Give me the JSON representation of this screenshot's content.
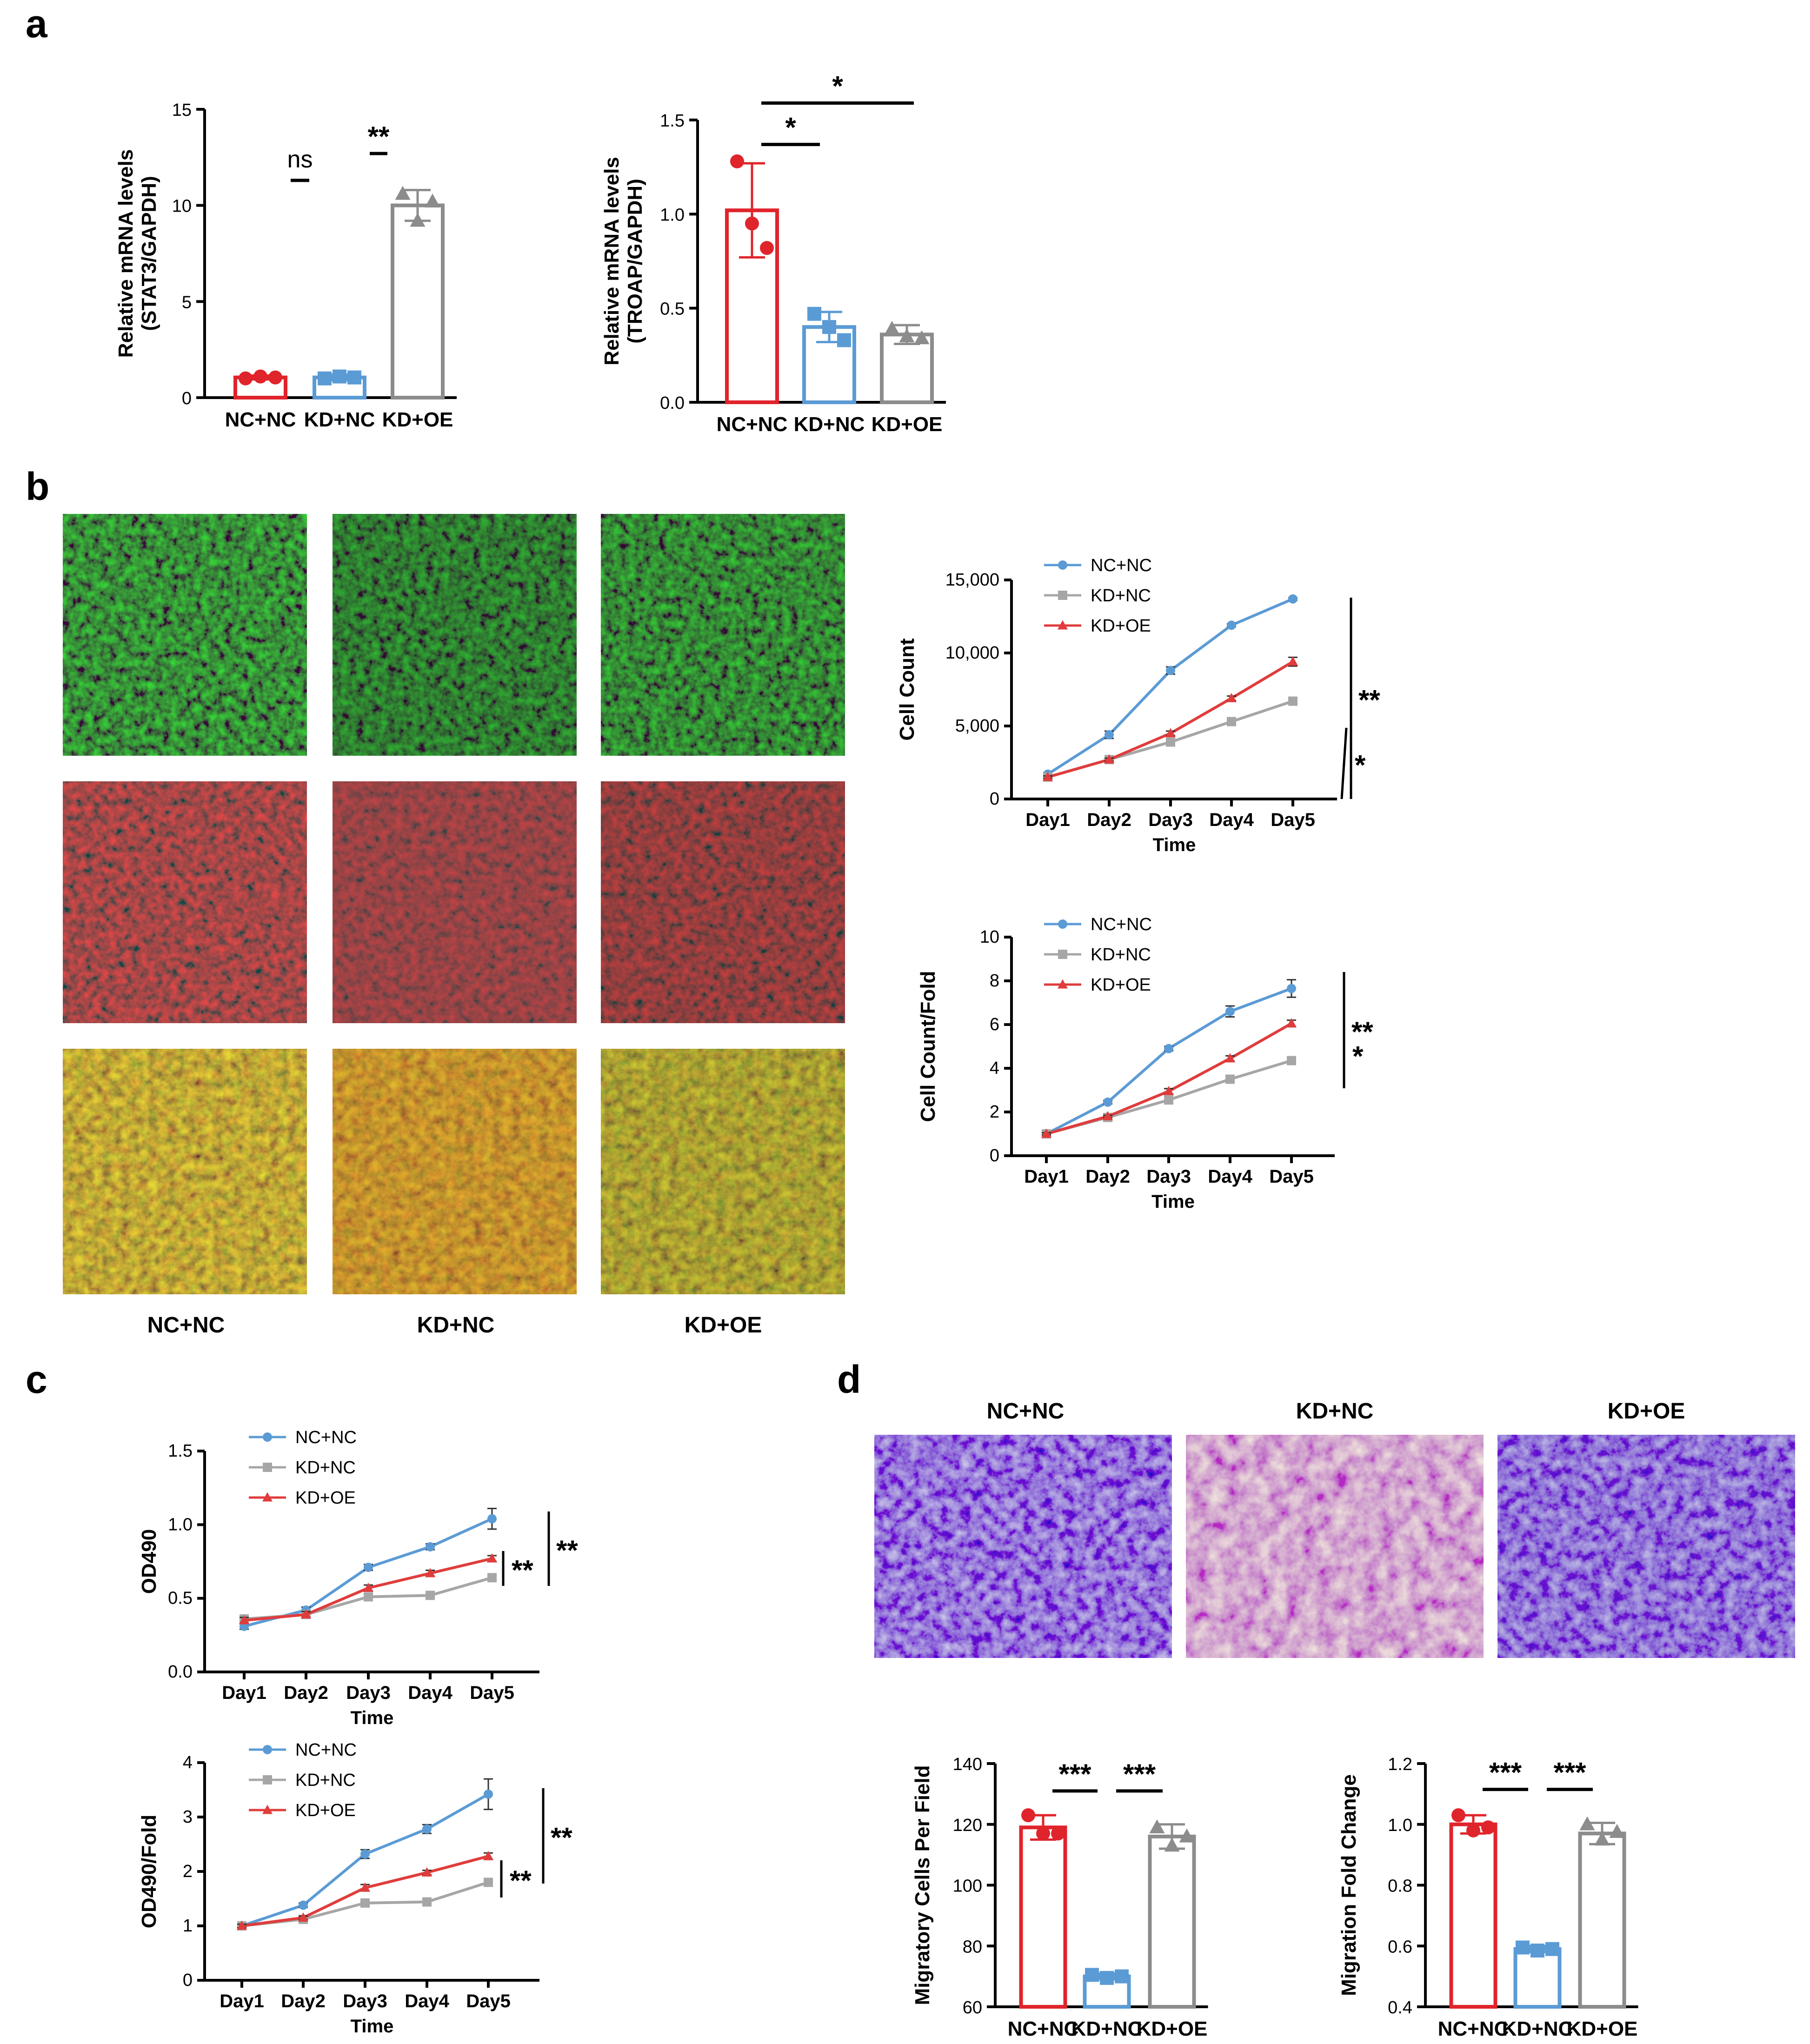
{
  "panels": [
    "a",
    "b",
    "c",
    "d"
  ],
  "colors": {
    "nc_nc_bar": "#e0242b",
    "kd_nc_bar": "#5b9bd5",
    "kd_oe_bar": "#8c8c8c",
    "nc_nc_line": "#5b9bd5",
    "kd_nc_line": "#a6a6a6",
    "kd_oe_line": "#e03c3c"
  },
  "microscopy_b": {
    "column_labels": [
      "NC+NC",
      "KD+NC",
      "KD+OE"
    ],
    "rows": [
      "green",
      "red",
      "merge"
    ]
  },
  "microscopy_d": {
    "column_labels": [
      "NC+NC",
      "KD+NC",
      "KD+OE"
    ]
  },
  "chart_data": [
    {
      "id": "a1",
      "type": "bar",
      "ylabel": "Relative mRNA levels\n(STAT3/GAPDH)",
      "ylabel_lines": [
        "Relative mRNA levels",
        "(STAT3/GAPDH)"
      ],
      "categories": [
        "NC+NC",
        "KD+NC",
        "KD+OE"
      ],
      "values": [
        1.05,
        1.05,
        10.0
      ],
      "errors": [
        0.1,
        0.15,
        0.8
      ],
      "points": [
        [
          1.0,
          1.1,
          1.05
        ],
        [
          1.0,
          1.1,
          1.05
        ],
        [
          10.6,
          9.2,
          10.2
        ]
      ],
      "markers": [
        "circle",
        "square",
        "triangle"
      ],
      "ylim": [
        0,
        15
      ],
      "yticks": [
        0,
        5,
        10,
        15
      ],
      "ytick_labels": [
        "0",
        "5",
        "10",
        "15"
      ],
      "significance": [
        {
          "pair": [
            0,
            1
          ],
          "label": "ns",
          "level": 11.3
        },
        {
          "pair": [
            1,
            2
          ],
          "label": "**",
          "level": 12.7
        }
      ]
    },
    {
      "id": "a2",
      "type": "bar",
      "ylabel_lines": [
        "Relative mRNA levels",
        "(TROAP/GAPDH)"
      ],
      "categories": [
        "NC+NC",
        "KD+NC",
        "KD+OE"
      ],
      "values": [
        1.02,
        0.4,
        0.36
      ],
      "errors": [
        0.25,
        0.08,
        0.05
      ],
      "points": [
        [
          1.28,
          0.95,
          0.82
        ],
        [
          0.47,
          0.4,
          0.33
        ],
        [
          0.39,
          0.35,
          0.34
        ]
      ],
      "markers": [
        "circle",
        "square",
        "triangle"
      ],
      "ylim": [
        0,
        1.5
      ],
      "yticks": [
        0,
        0.5,
        1.0,
        1.5
      ],
      "ytick_labels": [
        "0.0",
        "0.5",
        "1.0",
        "1.5"
      ],
      "significance": [
        {
          "pair": [
            0,
            1
          ],
          "label": "*",
          "level": 1.37
        },
        {
          "pair": [
            0,
            2
          ],
          "label": "*",
          "level": 1.59
        }
      ]
    },
    {
      "id": "b1",
      "type": "line",
      "ylabel": "Cell Count",
      "xlabel": "Time",
      "categories": [
        "Day1",
        "Day2",
        "Day3",
        "Day4",
        "Day5"
      ],
      "series": [
        {
          "name": "NC+NC",
          "values": [
            1700,
            4400,
            8800,
            11900,
            13700
          ],
          "errors": [
            100,
            250,
            250,
            100,
            80
          ],
          "marker": "circle"
        },
        {
          "name": "KD+NC",
          "values": [
            1500,
            2700,
            3900,
            5300,
            6700
          ],
          "errors": [
            80,
            100,
            120,
            100,
            250
          ],
          "marker": "square"
        },
        {
          "name": "KD+OE",
          "values": [
            1500,
            2700,
            4500,
            6900,
            9400
          ],
          "errors": [
            80,
            100,
            150,
            150,
            300
          ],
          "marker": "triangle"
        }
      ],
      "ylim": [
        0,
        15000
      ],
      "yticks": [
        0,
        5000,
        10000,
        15000
      ],
      "ytick_labels": [
        "0",
        "5,000",
        "10,000",
        "15,000"
      ],
      "significance": [
        "*",
        "**"
      ]
    },
    {
      "id": "b2",
      "type": "line",
      "ylabel": "Cell Count/Fold",
      "xlabel": "Time",
      "categories": [
        "Day1",
        "Day2",
        "Day3",
        "Day4",
        "Day5"
      ],
      "series": [
        {
          "name": "NC+NC",
          "values": [
            1.0,
            2.45,
            4.9,
            6.6,
            7.65
          ],
          "errors": [
            0.05,
            0.08,
            0.1,
            0.25,
            0.4
          ],
          "marker": "circle"
        },
        {
          "name": "KD+NC",
          "values": [
            1.0,
            1.75,
            2.55,
            3.5,
            4.35
          ],
          "errors": [
            0.05,
            0.05,
            0.1,
            0.08,
            0.12
          ],
          "marker": "square"
        },
        {
          "name": "KD+OE",
          "values": [
            1.0,
            1.8,
            2.95,
            4.45,
            6.05
          ],
          "errors": [
            0.05,
            0.05,
            0.12,
            0.12,
            0.15
          ],
          "marker": "triangle"
        }
      ],
      "ylim": [
        0,
        10
      ],
      "yticks": [
        0,
        2,
        4,
        6,
        8,
        10
      ],
      "ytick_labels": [
        "0",
        "2",
        "4",
        "6",
        "8",
        "10"
      ],
      "significance": [
        "*",
        "**"
      ]
    },
    {
      "id": "c1",
      "type": "line",
      "ylabel": "OD490",
      "xlabel": "Time",
      "categories": [
        "Day1",
        "Day2",
        "Day3",
        "Day4",
        "Day5"
      ],
      "series": [
        {
          "name": "NC+NC",
          "values": [
            0.31,
            0.42,
            0.71,
            0.85,
            1.04
          ],
          "errors": [
            0.02,
            0.02,
            0.02,
            0.02,
            0.07
          ],
          "marker": "circle"
        },
        {
          "name": "KD+NC",
          "values": [
            0.36,
            0.39,
            0.51,
            0.52,
            0.64
          ],
          "errors": [
            0.02,
            0.02,
            0.02,
            0.02,
            0.02
          ],
          "marker": "square"
        },
        {
          "name": "KD+OE",
          "values": [
            0.35,
            0.39,
            0.57,
            0.67,
            0.77
          ],
          "errors": [
            0.02,
            0.02,
            0.02,
            0.02,
            0.02
          ],
          "marker": "triangle"
        }
      ],
      "ylim": [
        0,
        1.5
      ],
      "yticks": [
        0,
        0.5,
        1.0,
        1.5
      ],
      "ytick_labels": [
        "0.0",
        "0.5",
        "1.0",
        "1.5"
      ],
      "significance": [
        "**",
        "**"
      ]
    },
    {
      "id": "c2",
      "type": "line",
      "ylabel": "OD490/Fold",
      "xlabel": "Time",
      "categories": [
        "Day1",
        "Day2",
        "Day3",
        "Day4",
        "Day5"
      ],
      "series": [
        {
          "name": "NC+NC",
          "values": [
            1.0,
            1.38,
            2.32,
            2.78,
            3.42
          ],
          "errors": [
            0.03,
            0.04,
            0.08,
            0.08,
            0.28
          ],
          "marker": "circle"
        },
        {
          "name": "KD+NC",
          "values": [
            1.0,
            1.12,
            1.42,
            1.44,
            1.8
          ],
          "errors": [
            0.03,
            0.03,
            0.03,
            0.03,
            0.04
          ],
          "marker": "square"
        },
        {
          "name": "KD+OE",
          "values": [
            1.0,
            1.15,
            1.7,
            1.98,
            2.28
          ],
          "errors": [
            0.03,
            0.03,
            0.06,
            0.04,
            0.06
          ],
          "marker": "triangle"
        }
      ],
      "ylim": [
        0,
        4
      ],
      "yticks": [
        0,
        1,
        2,
        3,
        4
      ],
      "ytick_labels": [
        "0",
        "1",
        "2",
        "3",
        "4"
      ],
      "significance": [
        "**",
        "**"
      ]
    },
    {
      "id": "d1",
      "type": "bar",
      "ylabel": "Migratory Cells Per Field",
      "categories": [
        "NC+NC",
        "KD+NC",
        "KD+OE"
      ],
      "values": [
        119,
        70,
        116
      ],
      "errors": [
        4,
        1,
        4
      ],
      "points": [
        [
          123,
          117,
          117
        ],
        [
          70.5,
          69.5,
          70
        ],
        [
          119,
          113,
          116
        ]
      ],
      "markers": [
        "circle",
        "square",
        "triangle"
      ],
      "ylim": [
        60,
        140
      ],
      "yticks": [
        60,
        80,
        100,
        120,
        140
      ],
      "ytick_labels": [
        "60",
        "80",
        "100",
        "120",
        "140"
      ],
      "significance": [
        {
          "pair": [
            0,
            1
          ],
          "label": "***",
          "level": 131
        },
        {
          "pair": [
            1,
            2
          ],
          "label": "***",
          "level": 131
        }
      ]
    },
    {
      "id": "d2",
      "type": "bar",
      "ylabel": "Migration Fold Change",
      "categories": [
        "NC+NC",
        "KD+NC",
        "KD+OE"
      ],
      "values": [
        1.0,
        0.59,
        0.97
      ],
      "errors": [
        0.03,
        0.01,
        0.035
      ],
      "points": [
        [
          1.03,
          0.98,
          0.99
        ],
        [
          0.595,
          0.585,
          0.59
        ],
        [
          1.0,
          0.95,
          0.975
        ]
      ],
      "markers": [
        "circle",
        "square",
        "triangle"
      ],
      "ylim": [
        0.4,
        1.2
      ],
      "yticks": [
        0.4,
        0.6,
        0.8,
        1.0,
        1.2
      ],
      "ytick_labels": [
        "0.4",
        "0.6",
        "0.8",
        "1.0",
        "1.2"
      ],
      "significance": [
        {
          "pair": [
            0,
            1
          ],
          "label": "***",
          "level": 1.115
        },
        {
          "pair": [
            1,
            2
          ],
          "label": "***",
          "level": 1.115
        }
      ]
    }
  ]
}
